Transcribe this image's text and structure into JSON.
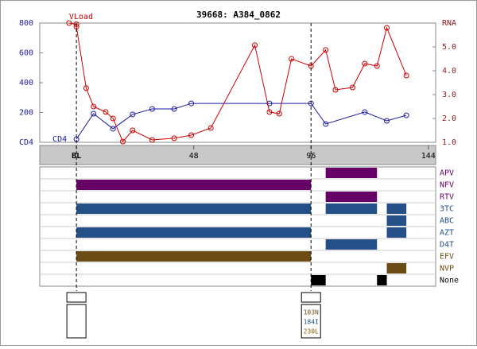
{
  "chart_data": {
    "type": "line",
    "title": "39668: A384_0862",
    "xlim": [
      -15,
      147
    ],
    "xticks": [
      {
        "value": 0,
        "label": "BL"
      },
      48,
      96,
      144
    ],
    "ylim": [
      0,
      800
    ],
    "yticks": [
      200,
      400,
      600,
      800
    ],
    "ylabel": "CD4",
    "y2lim": [
      1,
      6
    ],
    "y2ticks": [
      {
        "value": 1,
        "label": "1.0"
      },
      {
        "value": 2,
        "label": "2.0"
      },
      {
        "value": 3,
        "label": "3.0"
      },
      {
        "value": 4,
        "label": "4.0"
      },
      {
        "value": 5,
        "label": "5.0"
      }
    ],
    "y2label": "RNA",
    "series": [
      {
        "name": "CD4",
        "color": "#1a1aa0",
        "x": [
          0,
          7,
          15,
          23,
          31,
          40,
          47,
          79,
          96,
          102,
          118,
          127,
          135
        ],
        "values": [
          21,
          192,
          91,
          187,
          224,
          224,
          261,
          261,
          261,
          123,
          203,
          144,
          181
        ]
      },
      {
        "name": "VLoad",
        "color": "#cc0000",
        "axis": "y2",
        "x": [
          -3,
          0,
          0,
          4,
          7,
          12,
          15,
          19,
          23,
          31,
          40,
          47,
          55,
          73,
          79,
          83,
          88,
          96,
          102,
          106,
          113,
          118,
          123,
          127,
          135
        ],
        "values": [
          6.0,
          5.95,
          5.85,
          3.27,
          2.5,
          2.27,
          2.0,
          1.03,
          1.5,
          1.1,
          1.17,
          1.3,
          1.6,
          5.07,
          2.27,
          2.2,
          4.5,
          4.2,
          4.87,
          3.2,
          3.3,
          4.3,
          4.2,
          5.8,
          3.8
        ]
      }
    ],
    "regimen": [
      {
        "name": "APV",
        "color": "#660066",
        "spans": [
          [
            102,
            123
          ]
        ]
      },
      {
        "name": "NFV",
        "color": "#660066",
        "spans": [
          [
            0,
            96
          ]
        ]
      },
      {
        "name": "RTV",
        "color": "#660066",
        "spans": [
          [
            102,
            123
          ]
        ]
      },
      {
        "name": "3TC",
        "color": "#254f87",
        "spans": [
          [
            0,
            96
          ],
          [
            102,
            123
          ],
          [
            127,
            135
          ]
        ]
      },
      {
        "name": "ABC",
        "color": "#254f87",
        "spans": [
          [
            127,
            135
          ]
        ]
      },
      {
        "name": "AZT",
        "color": "#254f87",
        "spans": [
          [
            0,
            96
          ],
          [
            127,
            135
          ]
        ]
      },
      {
        "name": "D4T",
        "color": "#254f87",
        "spans": [
          [
            102,
            123
          ]
        ]
      },
      {
        "name": "EFV",
        "color": "#6b4c14",
        "spans": [
          [
            0,
            96
          ]
        ]
      },
      {
        "name": "NVP",
        "color": "#6b4c14",
        "spans": [
          [
            127,
            135
          ]
        ]
      },
      {
        "name": "None",
        "color": "#000000",
        "spans": [
          [
            96,
            102
          ],
          [
            123,
            127
          ]
        ]
      }
    ],
    "genotypes": [
      {
        "week": 0,
        "mutations": []
      },
      {
        "week": 96,
        "mutations": [
          {
            "text": "103N",
            "color": "#6b4c14"
          },
          {
            "text": "184I",
            "color": "#254f87"
          },
          {
            "text": "230L",
            "color": "#8a5a00"
          }
        ]
      }
    ]
  }
}
